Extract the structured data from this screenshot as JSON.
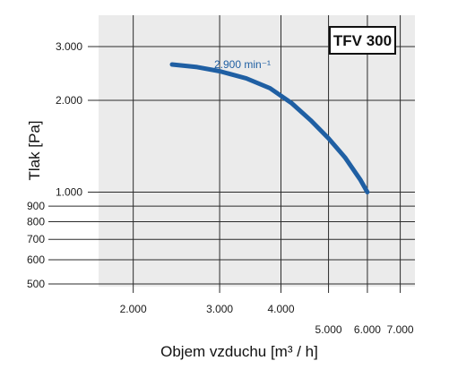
{
  "chart_data": {
    "type": "line",
    "title": "",
    "badge": "TFV 300",
    "xlabel": "Objem vzduchu [m³ / h]",
    "ylabel": "Tlak [Pa]",
    "xscale": "log",
    "yscale": "log",
    "xlim": [
      1700,
      7500
    ],
    "ylim": [
      490,
      3800
    ],
    "grid": true,
    "x_ticks": [
      {
        "value": 2000,
        "label": "2.000"
      },
      {
        "value": 3000,
        "label": "3.000"
      },
      {
        "value": 4000,
        "label": "4.000"
      },
      {
        "value": 5000,
        "label": "5.000"
      },
      {
        "value": 6000,
        "label": "6.000"
      },
      {
        "value": 7000,
        "label": "7.000"
      }
    ],
    "y_ticks": [
      {
        "value": 500,
        "label": "500"
      },
      {
        "value": 600,
        "label": "600"
      },
      {
        "value": 700,
        "label": "700"
      },
      {
        "value": 800,
        "label": "800"
      },
      {
        "value": 900,
        "label": "900"
      },
      {
        "value": 1000,
        "label": "1.000"
      },
      {
        "value": 2000,
        "label": "2.000"
      },
      {
        "value": 3000,
        "label": "3.000"
      }
    ],
    "series": [
      {
        "name": "2.900 min⁻¹",
        "color": "#1f5fa3",
        "x": [
          2400,
          2700,
          3000,
          3400,
          3800,
          4200,
          4600,
          5000,
          5400,
          5800,
          6000
        ],
        "y": [
          2620,
          2570,
          2490,
          2360,
          2190,
          1960,
          1720,
          1500,
          1300,
          1100,
          1000
        ]
      }
    ]
  }
}
